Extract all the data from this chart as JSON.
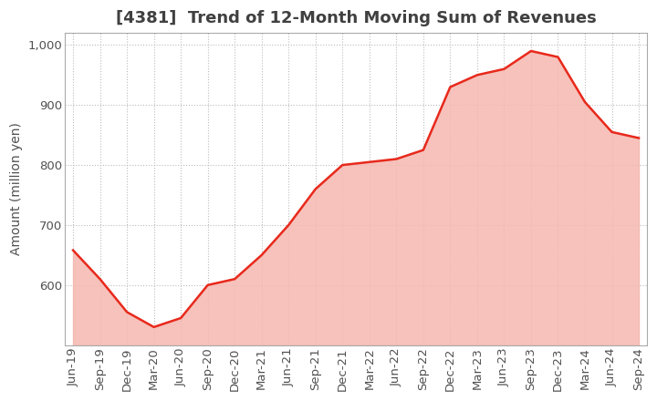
{
  "title": "[4381]  Trend of 12-Month Moving Sum of Revenues",
  "ylabel": "Amount (million yen)",
  "x_labels": [
    "Jun-19",
    "Sep-19",
    "Dec-19",
    "Mar-20",
    "Jun-20",
    "Sep-20",
    "Dec-20",
    "Mar-21",
    "Jun-21",
    "Sep-21",
    "Dec-21",
    "Mar-22",
    "Jun-22",
    "Sep-22",
    "Dec-22",
    "Mar-23",
    "Jun-23",
    "Sep-23",
    "Dec-23",
    "Mar-24",
    "Jun-24",
    "Sep-24"
  ],
  "values": [
    658,
    610,
    555,
    530,
    545,
    600,
    610,
    650,
    700,
    760,
    800,
    805,
    810,
    825,
    930,
    950,
    960,
    990,
    980,
    905,
    855,
    845
  ],
  "line_color": "#e8291c",
  "fill_color": "#f5b8b0",
  "background_color": "#ffffff",
  "grid_color": "#bbbbbb",
  "title_color": "#404040",
  "label_color": "#505050",
  "ylim": [
    500,
    1020
  ],
  "yticks": [
    600,
    700,
    800,
    900,
    1000
  ],
  "title_fontsize": 13,
  "label_fontsize": 10,
  "tick_fontsize": 9.5
}
